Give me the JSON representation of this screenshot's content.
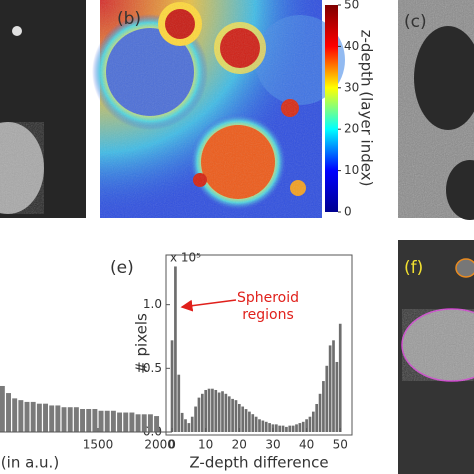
{
  "panel_labels": [
    "(b)",
    "(c)",
    "(e)",
    "(f)"
  ],
  "chart_data": [
    {
      "type": "colorbar",
      "label": "z-depth (layer index)",
      "clim": [
        0,
        50
      ],
      "ticks": [
        0,
        10,
        20,
        30,
        40,
        50
      ],
      "colors": [
        "#00008f",
        "#0000ff",
        "#00ffff",
        "#ffff00",
        "#ff0000",
        "#7f0000"
      ]
    },
    {
      "type": "bar",
      "xlabel": "Z-depth difference",
      "ylabel": "# pixels",
      "multiplier": "x 10⁵",
      "annotation": [
        "Spheroid",
        "regions"
      ],
      "annotation_color": "#e0201b",
      "color": "#6e6e6e",
      "x": [
        0,
        1,
        2,
        3,
        4,
        5,
        6,
        7,
        8,
        9,
        10,
        11,
        12,
        13,
        14,
        15,
        16,
        17,
        18,
        19,
        20,
        21,
        22,
        23,
        24,
        25,
        26,
        27,
        28,
        29,
        30,
        31,
        32,
        33,
        34,
        35,
        36,
        37,
        38,
        39,
        40,
        41,
        42,
        43,
        44,
        45,
        46,
        47,
        48,
        49,
        50
      ],
      "values": [
        0.72,
        1.3,
        0.45,
        0.15,
        0.1,
        0.07,
        0.12,
        0.2,
        0.27,
        0.3,
        0.33,
        0.34,
        0.34,
        0.33,
        0.31,
        0.32,
        0.3,
        0.28,
        0.26,
        0.25,
        0.22,
        0.2,
        0.18,
        0.16,
        0.14,
        0.12,
        0.1,
        0.09,
        0.08,
        0.07,
        0.06,
        0.06,
        0.05,
        0.05,
        0.04,
        0.05,
        0.05,
        0.06,
        0.07,
        0.08,
        0.1,
        0.12,
        0.16,
        0.22,
        0.3,
        0.4,
        0.52,
        0.68,
        0.72,
        0.55,
        0.85
      ],
      "xlim": [
        -1.8,
        53.5
      ],
      "ylim": [
        0,
        1.39
      ],
      "xticks": [
        0,
        10,
        20,
        30,
        40,
        50
      ],
      "yticks": [
        {
          "value": 0,
          "label": "0.0"
        },
        {
          "value": 0.5,
          "label": "0.5"
        },
        {
          "value": 1,
          "label": "1.0"
        }
      ]
    },
    {
      "type": "bar",
      "xlabel": "(in a.u.)",
      "color": "#7a7a7a",
      "x": [
        725,
        775,
        825,
        875,
        925,
        975,
        1025,
        1075,
        1125,
        1175,
        1225,
        1275,
        1325,
        1375,
        1425,
        1475,
        1525,
        1575,
        1625,
        1675,
        1725,
        1775,
        1825,
        1875,
        1925,
        1975
      ],
      "values": [
        26,
        22,
        19,
        18,
        17,
        17,
        16,
        16,
        15,
        15,
        14,
        14,
        14,
        13,
        13,
        13,
        12,
        12,
        12,
        11,
        11,
        11,
        10,
        10,
        10,
        9
      ],
      "xlim": [
        706,
        2100
      ],
      "ylim": [
        0,
        100
      ],
      "xticks": [
        1500,
        2000
      ]
    }
  ]
}
